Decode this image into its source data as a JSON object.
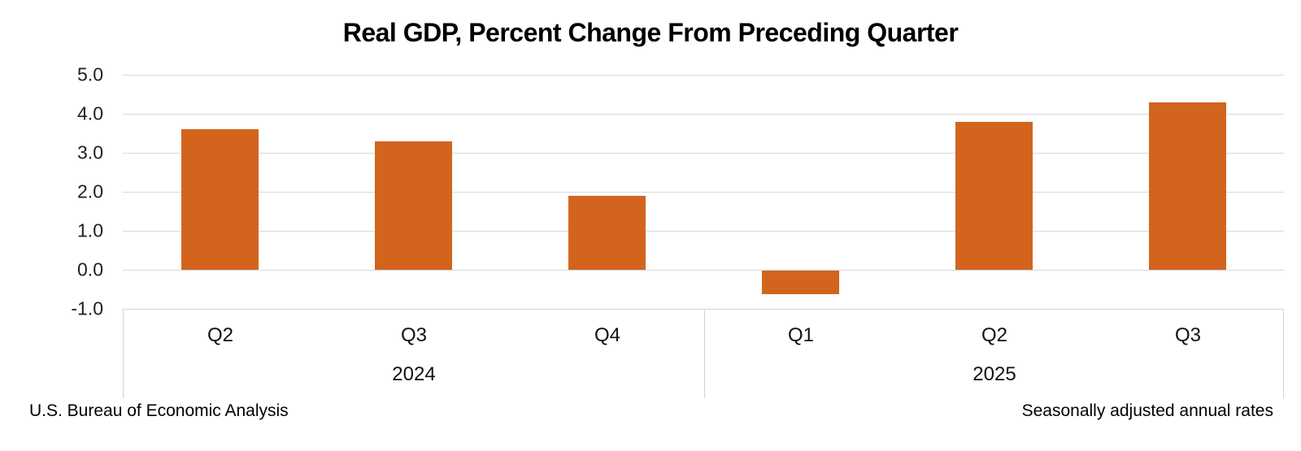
{
  "chart_data": {
    "type": "bar",
    "title": "Real GDP, Percent Change From Preceding Quarter",
    "categories": [
      "Q2",
      "Q3",
      "Q4",
      "Q1",
      "Q2",
      "Q3"
    ],
    "values": [
      3.6,
      3.3,
      1.9,
      -0.6,
      3.8,
      4.3
    ],
    "groups": [
      {
        "label": "2024",
        "count": 3
      },
      {
        "label": "2025",
        "count": 3
      }
    ],
    "ylim": [
      -1.0,
      5.0
    ],
    "yticks": [
      5.0,
      4.0,
      3.0,
      2.0,
      1.0,
      0.0,
      -1.0
    ],
    "ytick_labels": [
      "5.0",
      "4.0",
      "3.0",
      "2.0",
      "1.0",
      "0.0",
      "-1.0"
    ],
    "grid": true,
    "legend": "none",
    "bar_color": "#D2641E",
    "gridline_color": "#D9D9D9",
    "axis_box_border_color": "#D4D4D4"
  },
  "footer": {
    "left": "U.S. Bureau of Economic Analysis",
    "right": "Seasonally adjusted annual rates"
  }
}
